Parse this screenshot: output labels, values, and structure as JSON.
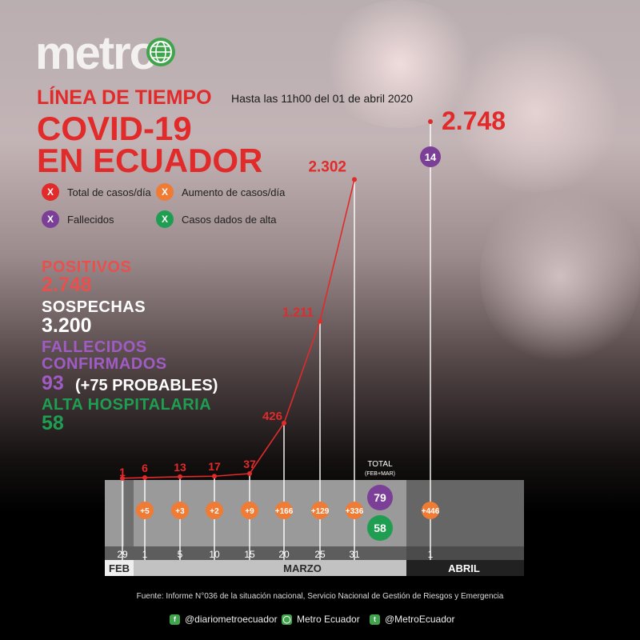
{
  "brand": {
    "logo": "metro"
  },
  "header": {
    "timeline_label": "LÍNEA DE TIEMPO",
    "date_note": "Hasta las 11h00 del 01 de abril 2020",
    "title_line1": "COVID-19",
    "title_line2": "EN ECUADOR"
  },
  "legend": [
    {
      "label": "Total de casos/día",
      "symbol": "X",
      "color": "#e12a2a"
    },
    {
      "label": "Aumento de casos/día",
      "symbol": "X",
      "color": "#f07b34"
    },
    {
      "label": "Fallecidos",
      "symbol": "X",
      "color": "#7b3f98"
    },
    {
      "label": "Casos dados de alta",
      "symbol": "X",
      "color": "#1f9e52"
    }
  ],
  "stats": {
    "positivos_label": "POSITIVOS",
    "positivos_value": "2.748",
    "sospechas_label": "SOSPECHAS",
    "sospechas_value": "3.200",
    "fallecidos_label1": "FALLECIDOS",
    "fallecidos_label2": "CONFIRMADOS",
    "fallecidos_value": "93",
    "fallecidos_extra": "(+75 PROBABLES)",
    "alta_label": "ALTA HOSPITALARIA",
    "alta_value": "58"
  },
  "colors": {
    "red": "#e12a2a",
    "orange": "#f07b34",
    "purple": "#7b3f98",
    "green": "#1f9e52"
  },
  "chart_data": {
    "type": "line",
    "x": [
      "29",
      "1",
      "5",
      "10",
      "15",
      "20",
      "25",
      "31",
      "1"
    ],
    "months": [
      "FEB",
      "MARZO",
      "ABRIL"
    ],
    "total_cases": [
      1,
      6,
      13,
      17,
      37,
      426,
      1211,
      2302,
      2748
    ],
    "total_case_labels": [
      "1",
      "6",
      "13",
      "17",
      "37",
      "426",
      "1.211",
      "2.302",
      "2.748"
    ],
    "increase_labels": [
      "",
      "+5",
      "+3",
      "+2",
      "+9",
      "+166",
      "+129",
      "+336",
      "+446"
    ],
    "deaths_day": {
      "date": "1",
      "month": "ABRIL",
      "value": "14"
    },
    "total_feb_mar": {
      "title": "TOTAL",
      "subtitle": "(FEB+MAR)",
      "deaths": "79",
      "discharged": "58"
    }
  },
  "footer": {
    "source": "Fuente: Informe N°036 de la situación nacional, Servicio Nacional de Gestión de Riesgos y Emergencia",
    "facebook": "@diariometroecuador",
    "instagram": "Metro Ecuador",
    "twitter": "@MetroEcuador"
  }
}
